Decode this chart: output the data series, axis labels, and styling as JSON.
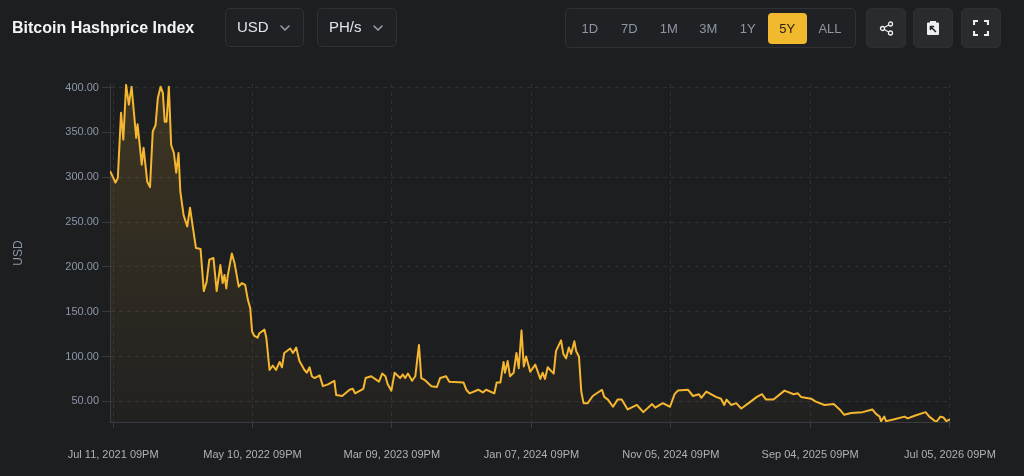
{
  "chart_data": {
    "type": "area",
    "title": "Bitcoin Hashprice Index",
    "ylabel": "USD",
    "annotations": [
      "USD",
      "PH/s",
      "1D",
      "7D",
      "1M",
      "3M",
      "1Y",
      "5Y",
      "ALL"
    ],
    "color": "#f5b630",
    "x": [
      "2021-07-06",
      "2021-07-17",
      "2021-07-22",
      "2021-07-29",
      "2021-08-03",
      "2021-08-09",
      "2021-08-15",
      "2021-08-21",
      "2021-08-31",
      "2021-09-03",
      "2021-09-12",
      "2021-09-16",
      "2021-09-24",
      "2021-09-30",
      "2021-10-06",
      "2021-10-12",
      "2021-10-17",
      "2021-10-23",
      "2021-10-28",
      "2021-11-01",
      "2021-11-05",
      "2021-11-10",
      "2021-11-15",
      "2021-11-21",
      "2021-11-26",
      "2021-12-01",
      "2021-12-05",
      "2021-12-12",
      "2021-12-20",
      "2021-12-26",
      "2022-01-01",
      "2022-01-08",
      "2022-01-18",
      "2022-01-25",
      "2022-01-31",
      "2022-02-06",
      "2022-02-15",
      "2022-02-22",
      "2022-03-02",
      "2022-03-07",
      "2022-03-11",
      "2022-03-15",
      "2022-03-18",
      "2022-03-27",
      "2022-04-02",
      "2022-04-11",
      "2022-04-18",
      "2022-04-25",
      "2022-05-01",
      "2022-05-06",
      "2022-05-10",
      "2022-05-15",
      "2022-05-22",
      "2022-05-26",
      "2022-06-06",
      "2022-06-10",
      "2022-06-17",
      "2022-06-24",
      "2022-07-01",
      "2022-07-09",
      "2022-07-14",
      "2022-07-19",
      "2022-08-01",
      "2022-08-07",
      "2022-08-14",
      "2022-08-21",
      "2022-09-01",
      "2022-09-06",
      "2022-09-12",
      "2022-09-17",
      "2022-09-23",
      "2022-10-04",
      "2022-10-11",
      "2022-10-22",
      "2022-11-05",
      "2022-11-09",
      "2022-11-22",
      "2022-12-08",
      "2022-12-15",
      "2022-12-20",
      "2023-01-07",
      "2023-01-12",
      "2023-01-24",
      "2023-02-10",
      "2023-02-17",
      "2023-02-24",
      "2023-03-01",
      "2023-03-09",
      "2023-03-16",
      "2023-03-28",
      "2023-04-03",
      "2023-04-08",
      "2023-04-14",
      "2023-04-23",
      "2023-04-30",
      "2023-05-08",
      "2023-05-13",
      "2023-05-20",
      "2023-06-04",
      "2023-06-16",
      "2023-06-23",
      "2023-07-06",
      "2023-07-13",
      "2023-08-13",
      "2023-08-19",
      "2023-08-26",
      "2023-09-14",
      "2023-09-24",
      "2023-10-01",
      "2023-10-19",
      "2023-10-24",
      "2023-11-01",
      "2023-11-08",
      "2023-11-11",
      "2023-11-17",
      "2023-11-22",
      "2023-11-30",
      "2023-12-06",
      "2023-12-11",
      "2023-12-17",
      "2023-12-22",
      "2023-12-27",
      "2024-01-05",
      "2024-01-16",
      "2024-01-27",
      "2024-02-01",
      "2024-02-06",
      "2024-02-12",
      "2024-02-25",
      "2024-03-01",
      "2024-03-12",
      "2024-03-17",
      "2024-03-23",
      "2024-03-29",
      "2024-04-03",
      "2024-04-10",
      "2024-04-14",
      "2024-04-20",
      "2024-04-25",
      "2024-04-30",
      "2024-05-09",
      "2024-05-20",
      "2024-06-09",
      "2024-06-14",
      "2024-06-22",
      "2024-07-03",
      "2024-07-13",
      "2024-07-22",
      "2024-08-04",
      "2024-08-24",
      "2024-09-07",
      "2024-09-26",
      "2024-10-03",
      "2024-10-19",
      "2024-11-04",
      "2024-11-14",
      "2024-11-21",
      "2024-12-13",
      "2024-12-24",
      "2025-01-06",
      "2025-01-11",
      "2025-01-22",
      "2025-02-12",
      "2025-02-23",
      "2025-03-02",
      "2025-03-07",
      "2025-03-17",
      "2025-03-28",
      "2025-04-08",
      "2025-04-24",
      "2025-05-12",
      "2025-05-23",
      "2025-06-01",
      "2025-06-17",
      "2025-07-11",
      "2025-07-31",
      "2025-08-09",
      "2025-08-16",
      "2025-09-07",
      "2025-09-16",
      "2025-10-06",
      "2025-10-26",
      "2025-11-08",
      "2025-11-18",
      "2025-12-03",
      "2025-12-28",
      "2026-01-18",
      "2026-01-26",
      "2026-02-03",
      "2026-02-06",
      "2026-02-13",
      "2026-02-17",
      "2026-03-07",
      "2026-03-29",
      "2026-04-05",
      "2026-04-20",
      "2026-05-14",
      "2026-05-22",
      "2026-06-06",
      "2026-06-15",
      "2026-06-22",
      "2026-06-28",
      "2026-07-06"
    ],
    "values": [
      306,
      294,
      299,
      372,
      342,
      403,
      381,
      401,
      344,
      359,
      314,
      333,
      295,
      289,
      351,
      358,
      388,
      401,
      394,
      362,
      362,
      401,
      336,
      327,
      305,
      327,
      284,
      258,
      245,
      266,
      245,
      221,
      220,
      173,
      183,
      208,
      210,
      173,
      202,
      182,
      191,
      176,
      190,
      215,
      204,
      178,
      182,
      180,
      163,
      154,
      128,
      123,
      121,
      126,
      130,
      121,
      85,
      90,
      85,
      94,
      88,
      104,
      109,
      104,
      110,
      95,
      85,
      82,
      88,
      78,
      76,
      79,
      67,
      69,
      73,
      57,
      56,
      63,
      64,
      59,
      64,
      76,
      78,
      72,
      81,
      78,
      69,
      62,
      82,
      76,
      80,
      76,
      81,
      73,
      78,
      113,
      76,
      74,
      67,
      66,
      76,
      78,
      72,
      71,
      63,
      59,
      63,
      60,
      63,
      59,
      71,
      71,
      94,
      82,
      95,
      78,
      82,
      104,
      87,
      129,
      89,
      100,
      83,
      91,
      75,
      82,
      75,
      88,
      81,
      106,
      118,
      103,
      98,
      110,
      103,
      117,
      106,
      100,
      61,
      48,
      48,
      56,
      63,
      55,
      52,
      44,
      52,
      52,
      41,
      46,
      38,
      47,
      43,
      48,
      44,
      58,
      62,
      63,
      56,
      58,
      54,
      61,
      55,
      53,
      46,
      52,
      46,
      48,
      42,
      48,
      55,
      58,
      52,
      52,
      62,
      58,
      59,
      55,
      53,
      50,
      46,
      47,
      41,
      35,
      37,
      38,
      41,
      36,
      33,
      28,
      33,
      28,
      30,
      33,
      31,
      34,
      38,
      33,
      27,
      33,
      32,
      28,
      30
    ],
    "xlim": [
      "2021-07-05",
      "2026-07-06"
    ],
    "xticks": [
      {
        "value": "2021-07-11T21:00",
        "label": "Jul 11, 2021 09PM"
      },
      {
        "value": "2022-05-10T21:00",
        "label": "May 10, 2022 09PM"
      },
      {
        "value": "2023-03-09T21:00",
        "label": "Mar 09, 2023 09PM"
      },
      {
        "value": "2024-01-07T21:00",
        "label": "Jan 07, 2024 09PM"
      },
      {
        "value": "2024-11-05T21:00",
        "label": "Nov 05, 2024 09PM"
      },
      {
        "value": "2025-09-04T21:00",
        "label": "Sep 04, 2025 09PM"
      },
      {
        "value": "2026-07-05T21:00",
        "label": "Jul 05, 2026 09PM"
      }
    ],
    "ylim": [
      27,
      404
    ],
    "yticks": [
      {
        "value": 50,
        "label": "50.00"
      },
      {
        "value": 100,
        "label": "100.00"
      },
      {
        "value": 150,
        "label": "150.00"
      },
      {
        "value": 200,
        "label": "200.00"
      },
      {
        "value": 250,
        "label": "250.00"
      },
      {
        "value": 300,
        "label": "300.00"
      },
      {
        "value": 350,
        "label": "350.00"
      },
      {
        "value": 400,
        "label": "400.00"
      }
    ],
    "grid": true
  }
}
